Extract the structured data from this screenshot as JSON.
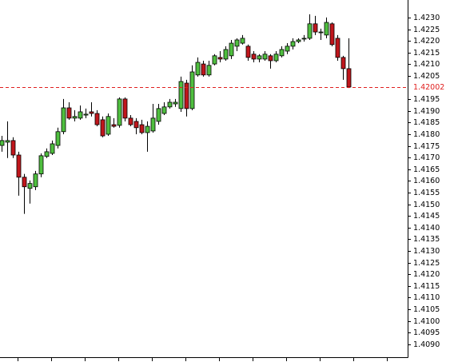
{
  "chart_data": {
    "type": "candlestick",
    "up_color": "#4fbf3f",
    "down_color": "#c0161c",
    "last_price_color": "#e0201f",
    "ylim": [
      1.40845,
      1.42375
    ],
    "yticks": [
      {
        "value": 1.409,
        "label": "1.4090"
      },
      1.4095,
      {
        "value": 1.41,
        "label": "1.4100"
      },
      1.4105,
      {
        "value": 1.411,
        "label": "1.4110"
      },
      1.4115,
      {
        "value": 1.412,
        "label": "1.4120"
      },
      1.4125,
      {
        "value": 1.413,
        "label": "1.4130"
      },
      1.4135,
      {
        "value": 1.414,
        "label": "1.4140"
      },
      1.4145,
      {
        "value": 1.415,
        "label": "1.4150"
      },
      1.4155,
      {
        "value": 1.416,
        "label": "1.4160"
      },
      1.4165,
      {
        "value": 1.417,
        "label": "1.4170"
      },
      1.4175,
      {
        "value": 1.418,
        "label": "1.4180"
      },
      1.4185,
      {
        "value": 1.419,
        "label": "1.4190"
      },
      1.4195,
      1.4205,
      {
        "value": 1.421,
        "label": "1.4210"
      },
      1.4215,
      {
        "value": 1.422,
        "label": "1.4220"
      },
      1.4225,
      {
        "value": 1.423,
        "label": "1.4230"
      }
    ],
    "open": [
      1.41752,
      1.41766,
      1.41773,
      1.41711,
      1.41616,
      1.41568,
      1.41575,
      1.4163,
      1.41705,
      1.41718,
      1.41752,
      1.41811,
      1.41913,
      1.41869,
      1.41869,
      1.41882,
      1.41896,
      1.41889,
      1.41862,
      1.418,
      1.41841,
      1.41838,
      1.41951,
      1.41869,
      1.41855,
      1.41841,
      1.41807,
      1.41814,
      1.41855,
      1.41889,
      1.41917,
      1.4193,
      1.4191,
      1.42019,
      1.4191,
      1.42054,
      1.42101,
      1.42054,
      1.42101,
      1.42129,
      1.42122,
      1.42136,
      1.42177,
      1.4219,
      1.42177,
      1.42143,
      1.42122,
      1.42122,
      1.42136,
      1.42115,
      1.42136,
      1.42156,
      1.42177,
      1.42197,
      1.42208,
      1.42211,
      1.42273,
      1.42238,
      1.42225,
      1.42273,
      1.42211,
      1.42129,
      1.42081
    ],
    "high": [
      1.41793,
      1.41855,
      1.41787,
      1.41725,
      1.4163,
      1.41602,
      1.41643,
      1.41718,
      1.41739,
      1.41773,
      1.41828,
      1.41951,
      1.41937,
      1.41903,
      1.41923,
      1.4191,
      1.41937,
      1.41903,
      1.41876,
      1.41889,
      1.41869,
      1.41958,
      1.41958,
      1.41882,
      1.41869,
      1.41862,
      1.41855,
      1.4193,
      1.4193,
      1.41937,
      1.41951,
      1.41951,
      1.42047,
      1.42033,
      1.42095,
      1.42129,
      1.42115,
      1.42115,
      1.42143,
      1.42156,
      1.42177,
      1.42204,
      1.42211,
      1.42225,
      1.42184,
      1.42156,
      1.42143,
      1.42156,
      1.42143,
      1.42156,
      1.42177,
      1.4219,
      1.42211,
      1.42211,
      1.42225,
      1.42314,
      1.42307,
      1.42252,
      1.423,
      1.42279,
      1.42225,
      1.42136,
      1.42211
    ],
    "low": [
      1.41725,
      1.41698,
      1.41698,
      1.41537,
      1.41459,
      1.41503,
      1.41561,
      1.41616,
      1.41698,
      1.41711,
      1.41739,
      1.418,
      1.41862,
      1.41855,
      1.41862,
      1.41869,
      1.41876,
      1.41834,
      1.41787,
      1.41793,
      1.41828,
      1.41828,
      1.41855,
      1.41834,
      1.418,
      1.418,
      1.41725,
      1.41807,
      1.41841,
      1.41882,
      1.4191,
      1.41917,
      1.41896,
      1.41876,
      1.41903,
      1.42047,
      1.42047,
      1.42047,
      1.42095,
      1.42108,
      1.42115,
      1.42122,
      1.42156,
      1.42184,
      1.42115,
      1.42108,
      1.42108,
      1.42115,
      1.42081,
      1.42108,
      1.42129,
      1.42143,
      1.42163,
      1.4219,
      1.42197,
      1.42204,
      1.42225,
      1.42204,
      1.42211,
      1.42177,
      1.42115,
      1.42033,
      1.41998
    ],
    "close": [
      1.41773,
      1.41773,
      1.41711,
      1.41616,
      1.41575,
      1.41589,
      1.4163,
      1.41708,
      1.41725,
      1.41759,
      1.41811,
      1.41913,
      1.41869,
      1.41876,
      1.41896,
      1.41886,
      1.41889,
      1.41841,
      1.41793,
      1.41876,
      1.41834,
      1.41951,
      1.41869,
      1.41841,
      1.41828,
      1.41807,
      1.41834,
      1.41869,
      1.4191,
      1.41917,
      1.41937,
      1.41937,
      1.42026,
      1.4191,
      1.42067,
      1.42108,
      1.42054,
      1.42095,
      1.42136,
      1.42122,
      1.42163,
      1.4219,
      1.42204,
      1.42211,
      1.42129,
      1.42122,
      1.42136,
      1.42143,
      1.42115,
      1.42143,
      1.42163,
      1.42177,
      1.42197,
      1.42204,
      1.42211,
      1.42273,
      1.42238,
      1.42238,
      1.42279,
      1.42184,
      1.42129,
      1.42081,
      1.42002
    ]
  }
}
